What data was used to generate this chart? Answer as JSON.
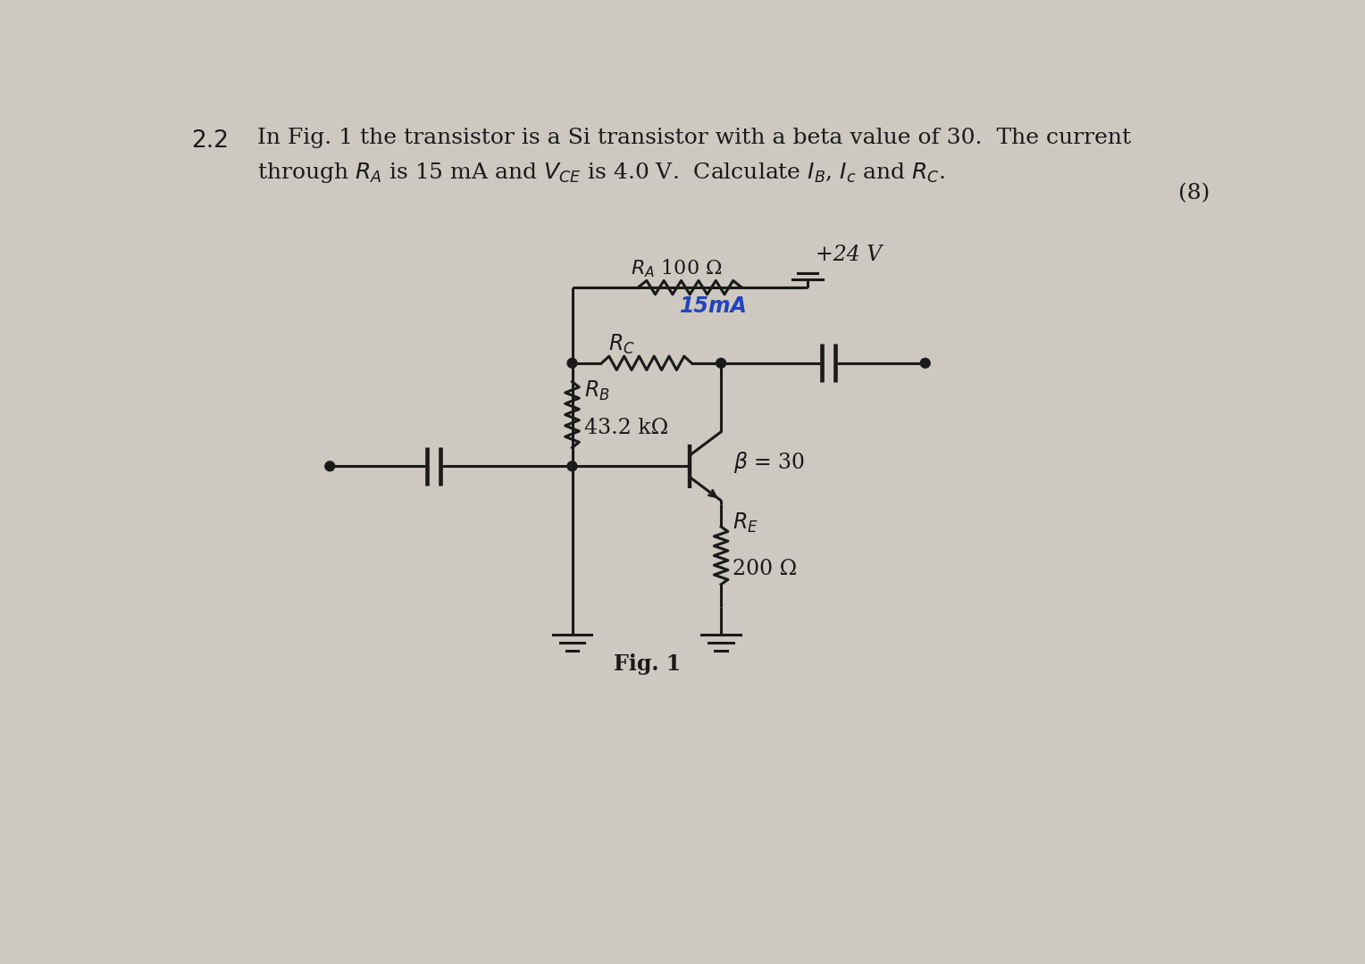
{
  "bg_color": "#cdc8c0",
  "text_color": "#1a1a1a",
  "line_color": "#1a1a1a",
  "blue_color": "#2244bb",
  "problem_number": "2.2",
  "marks": "(8)",
  "fig_label": "Fig. 1",
  "supply_voltage": "+24 V",
  "current_label": "15mA"
}
